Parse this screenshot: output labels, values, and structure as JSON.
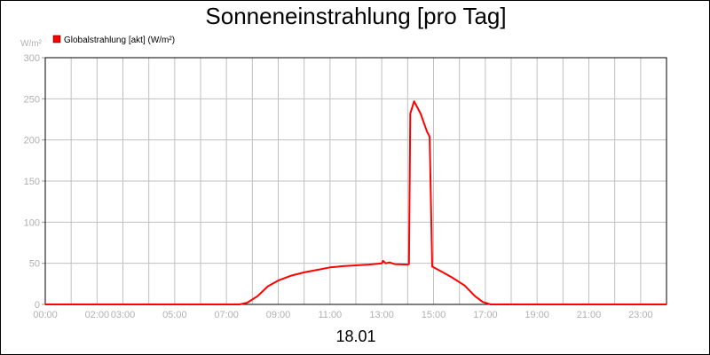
{
  "chart_data": {
    "type": "line",
    "title": "Sonneneinstrahlung [pro Tag]",
    "xlabel": "18.01",
    "ylabel": "W/m²",
    "ylim": [
      0,
      300
    ],
    "xlim_hours": [
      0,
      24
    ],
    "yticks": [
      0,
      50,
      100,
      150,
      200,
      250,
      300
    ],
    "xtick_labels": [
      {
        "h": 0,
        "label": "00:00"
      },
      {
        "h": 2,
        "label": "02:00"
      },
      {
        "h": 3,
        "label": "03:00"
      },
      {
        "h": 5,
        "label": "05:00"
      },
      {
        "h": 7,
        "label": "07:00"
      },
      {
        "h": 9,
        "label": "09:00"
      },
      {
        "h": 11,
        "label": "11:00"
      },
      {
        "h": 13,
        "label": "13:00"
      },
      {
        "h": 15,
        "label": "15:00"
      },
      {
        "h": 17,
        "label": "17:00"
      },
      {
        "h": 19,
        "label": "19:00"
      },
      {
        "h": 21,
        "label": "21:00"
      },
      {
        "h": 23,
        "label": "23:00"
      }
    ],
    "grid": true,
    "legend_placement": "top-left",
    "series": [
      {
        "name": "Globalstrahlung [akt] (W/m²)",
        "color": "#ff0000",
        "x": [
          "00:00",
          "07:30",
          "07:48",
          "08:12",
          "08:36",
          "09:00",
          "09:30",
          "10:00",
          "10:30",
          "11:00",
          "11:30",
          "12:00",
          "12:30",
          "13:00",
          "13:03",
          "13:09",
          "13:18",
          "13:30",
          "14:00",
          "14:03",
          "14:06",
          "14:15",
          "14:30",
          "14:45",
          "14:51",
          "14:57",
          "15:18",
          "15:42",
          "16:12",
          "16:36",
          "16:54",
          "17:12",
          "24:00"
        ],
        "values": [
          0,
          0,
          2,
          10,
          22,
          29,
          35,
          39,
          42,
          45,
          46.5,
          47.5,
          48.5,
          50,
          53,
          50,
          51,
          49,
          48.5,
          49,
          232,
          247,
          232,
          210,
          204,
          46,
          40,
          33,
          23,
          10,
          3,
          0,
          0
        ]
      }
    ]
  }
}
